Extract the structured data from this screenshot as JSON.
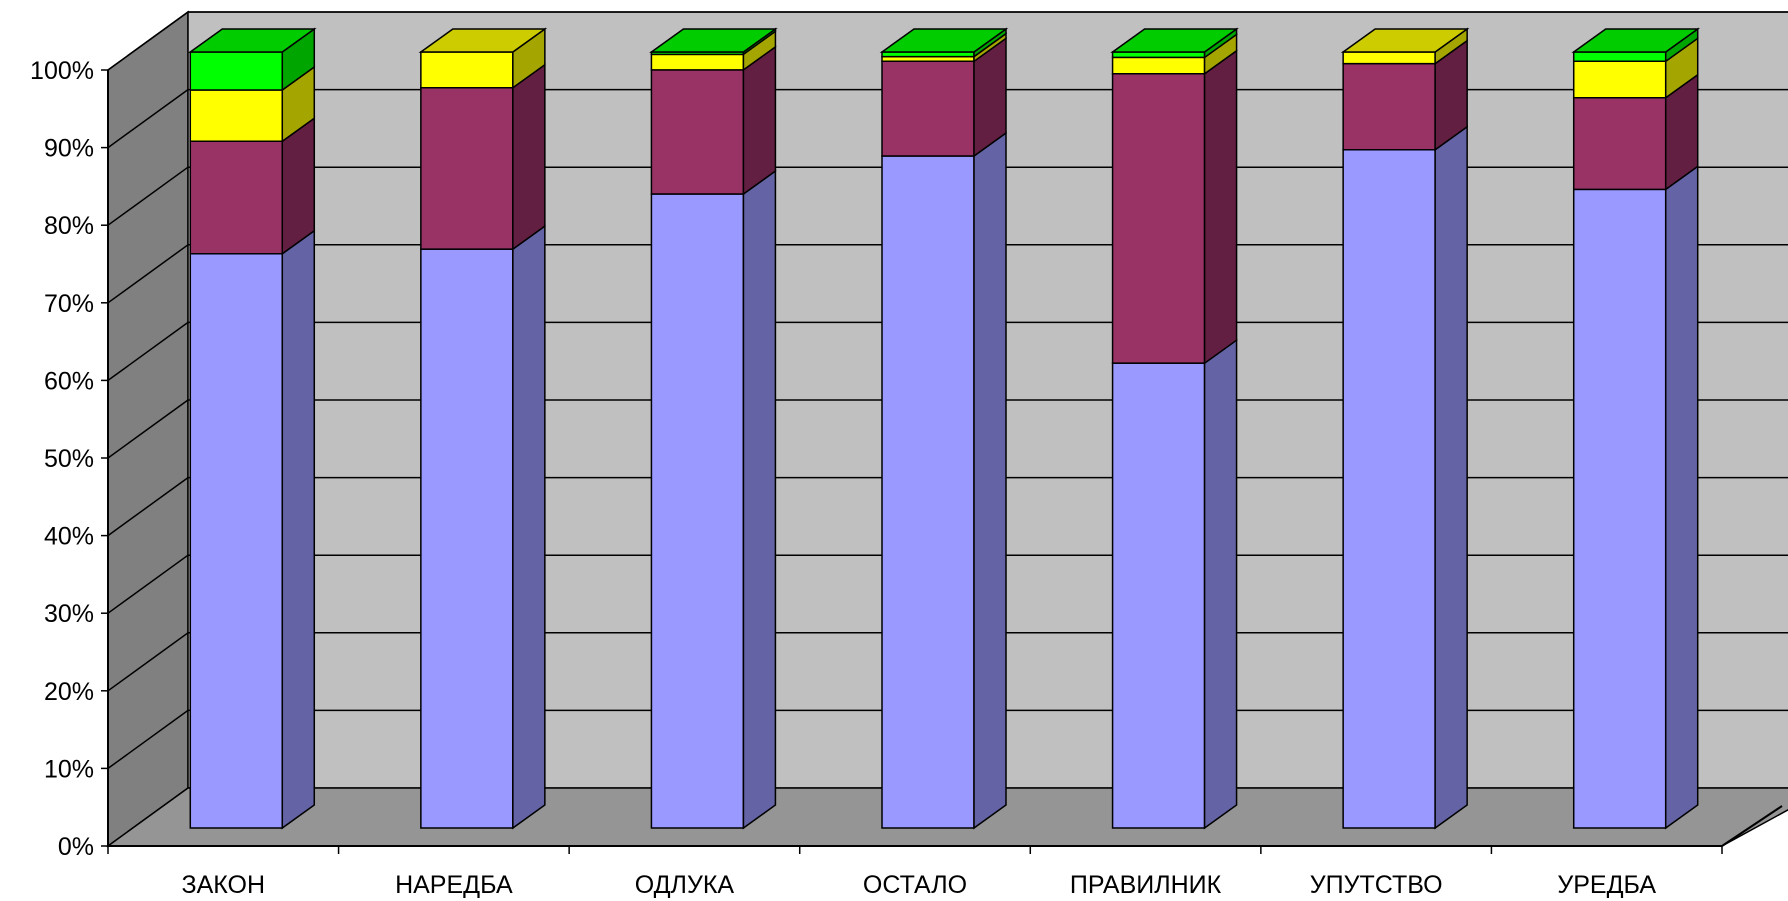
{
  "chart_data": {
    "type": "bar",
    "stacked": true,
    "percent_stacked": true,
    "three_d": true,
    "title": "",
    "xlabel": "",
    "ylabel": "",
    "ylim": [
      0,
      100
    ],
    "y_tick_labels": [
      "0%",
      "10%",
      "20%",
      "30%",
      "40%",
      "50%",
      "60%",
      "70%",
      "80%",
      "90%",
      "100%"
    ],
    "grid": true,
    "legend": "none",
    "categories": [
      "ЗАКОН",
      "НАРЕДБА",
      "ОДЛУКА",
      "ОСТАЛО",
      "ПРАВИЛНИК",
      "УПУТСТВО",
      "УРЕДБА"
    ],
    "series": [
      {
        "values": [
          74,
          74.6,
          81.7,
          86.6,
          59.9,
          87.4,
          82.3
        ]
      },
      {
        "values": [
          14.5,
          20.8,
          16.0,
          12.2,
          37.3,
          11.1,
          11.8
        ]
      },
      {
        "values": [
          6.6,
          4.6,
          2.0,
          0.6,
          2.1,
          1.5,
          4.7
        ]
      },
      {
        "values": [
          4.9,
          0.0,
          0.3,
          0.6,
          0.7,
          0.0,
          1.2
        ]
      }
    ],
    "colors": {
      "series": [
        {
          "front": "#9999FF",
          "side": "#6363A5",
          "top": "#B8B8FF"
        },
        {
          "front": "#993366",
          "side": "#631F42",
          "top": "#B35680"
        },
        {
          "front": "#FFFF00",
          "side": "#A5A500",
          "top": "#CCCC00"
        },
        {
          "front": "#00FF00",
          "side": "#00A500",
          "top": "#00CC00"
        }
      ],
      "back_wall": "#C0C0C0",
      "side_wall": "#808080",
      "floor": "#959595",
      "grid": "#000000"
    }
  }
}
